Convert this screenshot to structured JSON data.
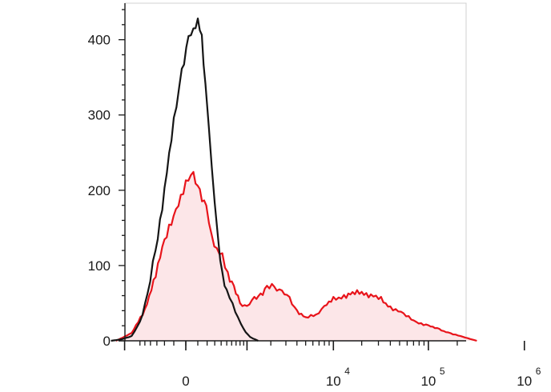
{
  "chart_data": {
    "type": "area",
    "title": "",
    "xlabel": "",
    "ylabel": "",
    "x_scale": "biexponential",
    "ylim": [
      0,
      440
    ],
    "grid": false,
    "legend": "none",
    "y_ticks": [
      {
        "value": 0,
        "label": "0"
      },
      {
        "value": 100,
        "label": "100"
      },
      {
        "value": 200,
        "label": "200"
      },
      {
        "value": 300,
        "label": "300"
      },
      {
        "value": 400,
        "label": "400"
      }
    ],
    "x_ticks": [
      {
        "value": 0,
        "label": "0",
        "exp": ""
      },
      {
        "value": 10000,
        "label": "10",
        "exp": "4"
      },
      {
        "value": 100000,
        "label": "10",
        "exp": "5"
      },
      {
        "value": 1000000,
        "label": "10",
        "exp": "6"
      }
    ],
    "series": [
      {
        "color": "#e8141b",
        "fill": "#fce6e8",
        "filled": true,
        "points": [
          [
            -1300,
            0
          ],
          [
            -800,
            10
          ],
          [
            -500,
            40
          ],
          [
            -350,
            80
          ],
          [
            -200,
            130
          ],
          [
            -80,
            175
          ],
          [
            0,
            210
          ],
          [
            60,
            218
          ],
          [
            120,
            200
          ],
          [
            190,
            175
          ],
          [
            260,
            140
          ],
          [
            330,
            120
          ],
          [
            420,
            110
          ],
          [
            520,
            90
          ],
          [
            650,
            70
          ],
          [
            800,
            50
          ],
          [
            1000,
            45
          ],
          [
            1250,
            55
          ],
          [
            1500,
            62
          ],
          [
            1800,
            70
          ],
          [
            2200,
            72
          ],
          [
            2700,
            65
          ],
          [
            3300,
            55
          ],
          [
            4000,
            40
          ],
          [
            5000,
            30
          ],
          [
            6500,
            35
          ],
          [
            8000,
            45
          ],
          [
            10000,
            55
          ],
          [
            13000,
            60
          ],
          [
            16000,
            62
          ],
          [
            20000,
            65
          ],
          [
            25000,
            60
          ],
          [
            32000,
            55
          ],
          [
            40000,
            45
          ],
          [
            55000,
            35
          ],
          [
            75000,
            25
          ],
          [
            100000,
            20
          ],
          [
            130000,
            15
          ],
          [
            170000,
            10
          ],
          [
            230000,
            5
          ],
          [
            320000,
            0
          ]
        ]
      },
      {
        "color": "#151515",
        "filled": false,
        "points": [
          [
            -1500,
            0
          ],
          [
            -1100,
            2
          ],
          [
            -800,
            6
          ],
          [
            -600,
            25
          ],
          [
            -450,
            60
          ],
          [
            -320,
            120
          ],
          [
            -200,
            200
          ],
          [
            -100,
            290
          ],
          [
            -30,
            360
          ],
          [
            20,
            400
          ],
          [
            60,
            415
          ],
          [
            100,
            425
          ],
          [
            140,
            400
          ],
          [
            180,
            340
          ],
          [
            220,
            280
          ],
          [
            260,
            230
          ],
          [
            300,
            180
          ],
          [
            350,
            130
          ],
          [
            420,
            90
          ],
          [
            500,
            65
          ],
          [
            620,
            50
          ],
          [
            750,
            30
          ],
          [
            900,
            15
          ],
          [
            1100,
            5
          ],
          [
            1400,
            0
          ]
        ]
      }
    ]
  }
}
